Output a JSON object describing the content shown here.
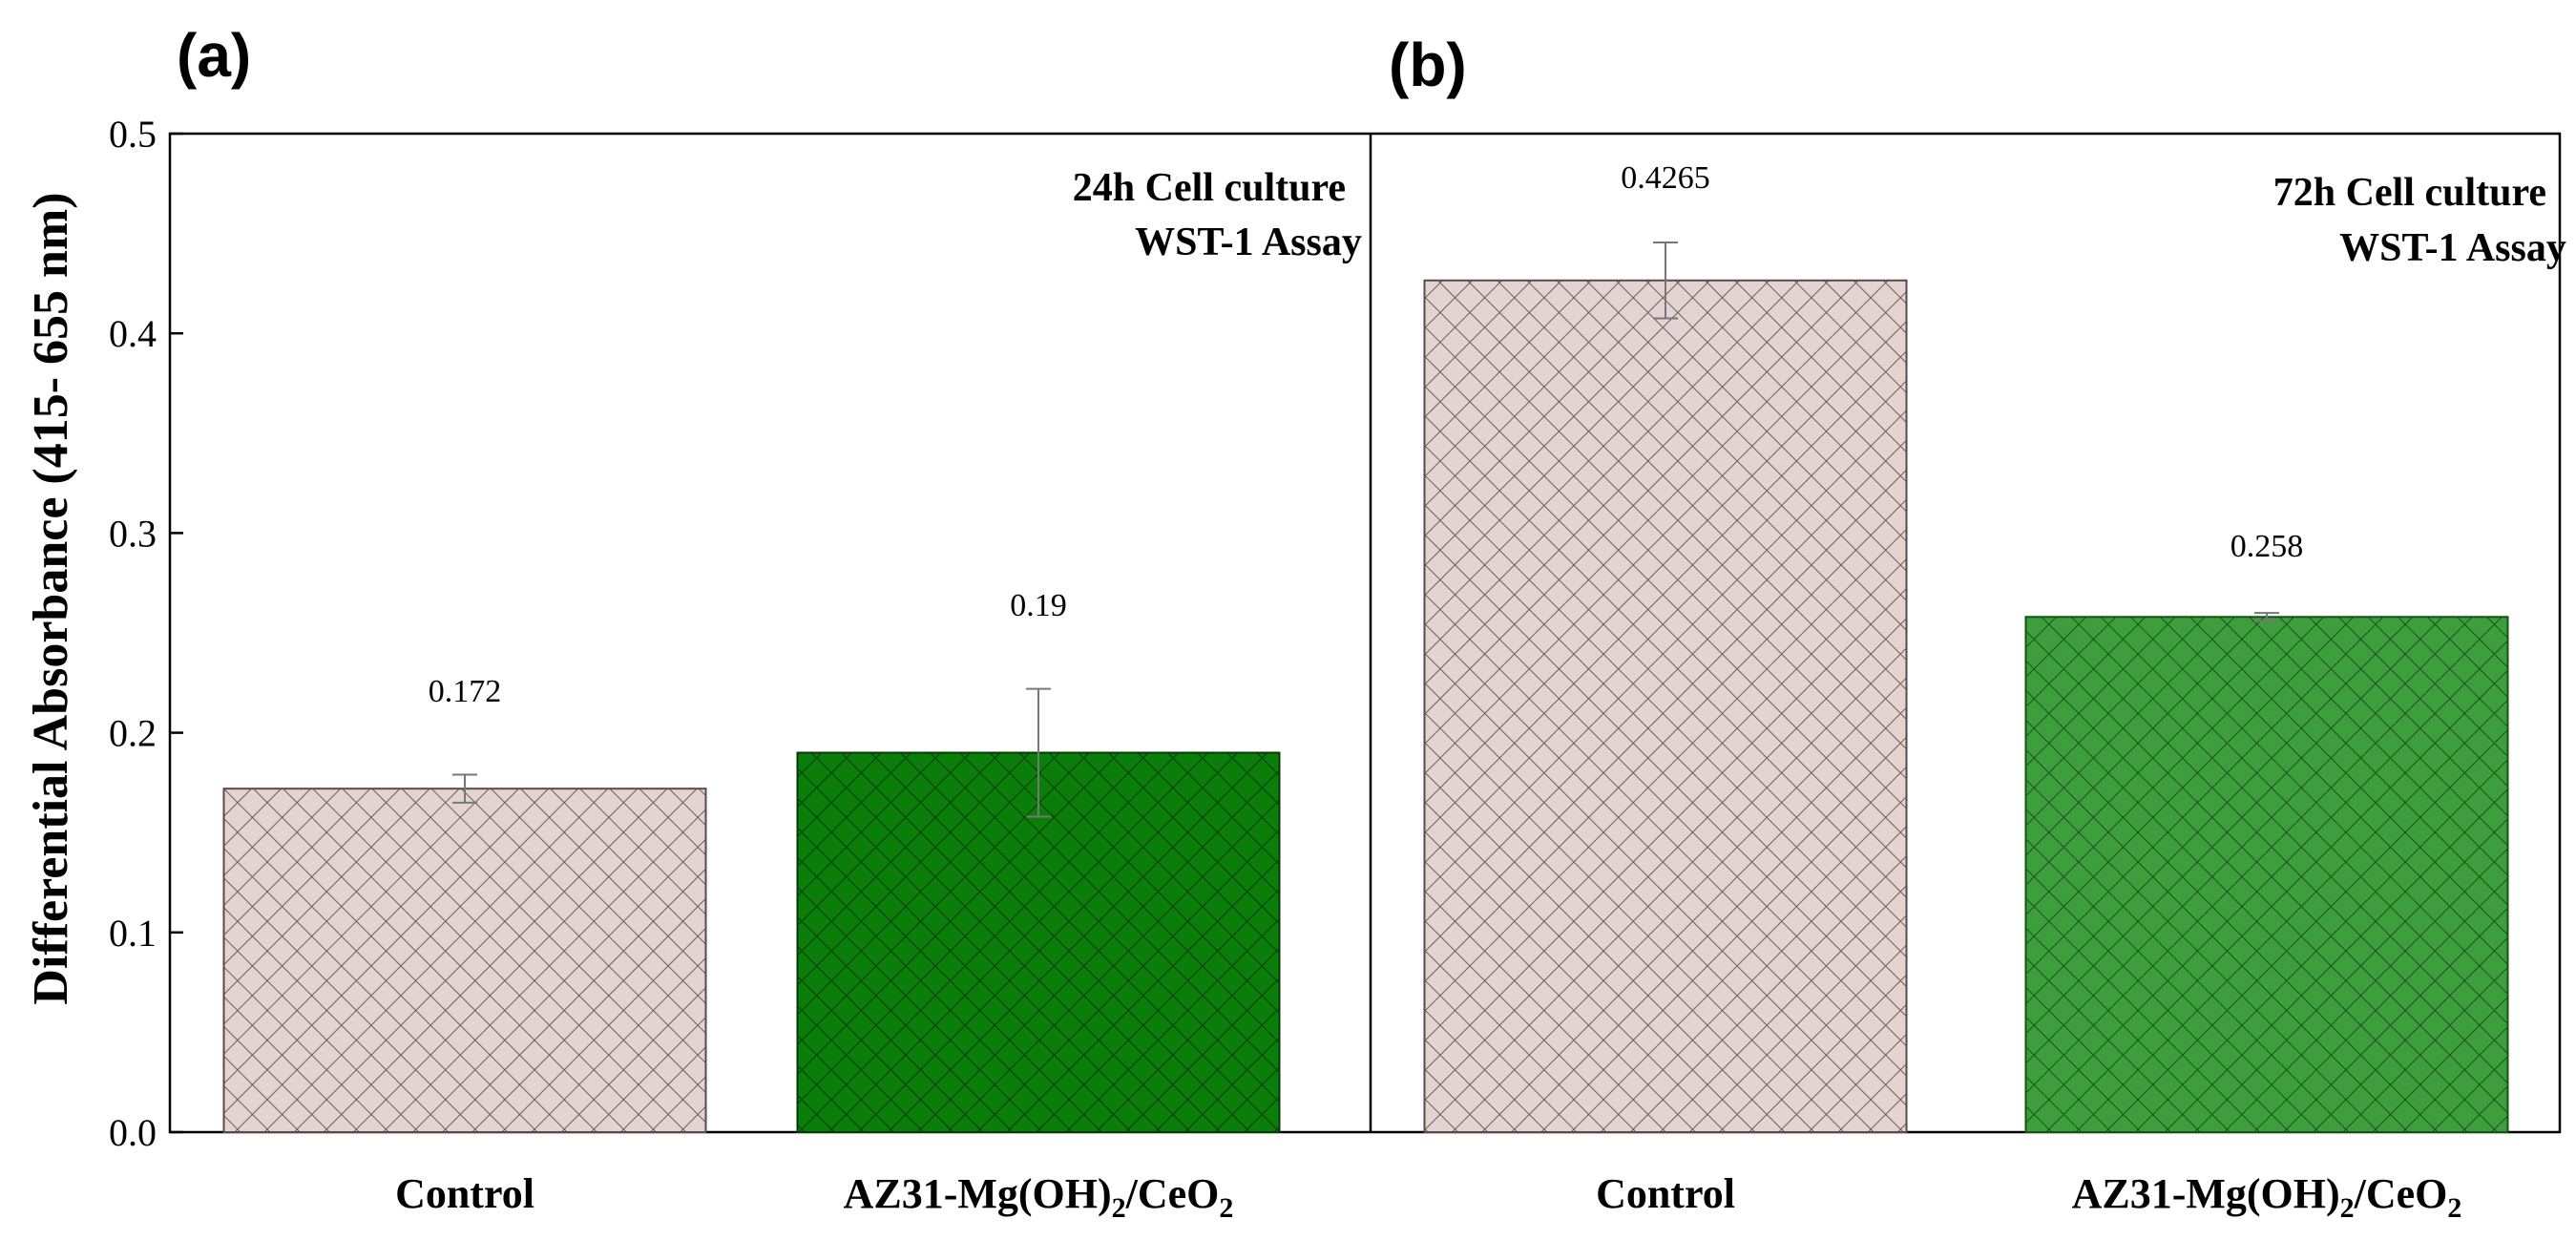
{
  "chart_data": {
    "type": "bar",
    "ylabel": "Differential Absorbance (415- 655 nm)",
    "ylim": [
      0,
      0.5
    ],
    "yticks": [
      "0.0",
      "0.1",
      "0.2",
      "0.3",
      "0.4",
      "0.5"
    ],
    "ytick_values": [
      0,
      0.1,
      0.2,
      0.3,
      0.4,
      0.5
    ],
    "panels": [
      {
        "letter": "(a)",
        "annotation_line1": "24h Cell culture",
        "annotation_line2": "WST-1 Assay",
        "bars": [
          {
            "category": "Control",
            "value": 0.172,
            "label": "0.172",
            "error": 0.007,
            "color": "#e3d3d1"
          },
          {
            "category_main": "AZ31-Mg(OH)",
            "sub1": "2",
            "category_mid": "/CeO",
            "sub2": "2",
            "value": 0.19,
            "label": "0.19",
            "error": 0.032,
            "color": "#0b7d0b"
          }
        ]
      },
      {
        "letter": "(b)",
        "annotation_line1": "72h Cell culture",
        "annotation_line2": "WST-1 Assay",
        "bars": [
          {
            "category": "Control",
            "value": 0.4265,
            "label": "0.4265",
            "error": 0.019,
            "color": "#e3d3d1"
          },
          {
            "category_main": "AZ31-Mg(OH)",
            "sub1": "2",
            "category_mid": "/CeO",
            "sub2": "2",
            "value": 0.258,
            "label": "0.258",
            "error": 0.002,
            "color": "#3e9e3e"
          }
        ]
      }
    ]
  }
}
